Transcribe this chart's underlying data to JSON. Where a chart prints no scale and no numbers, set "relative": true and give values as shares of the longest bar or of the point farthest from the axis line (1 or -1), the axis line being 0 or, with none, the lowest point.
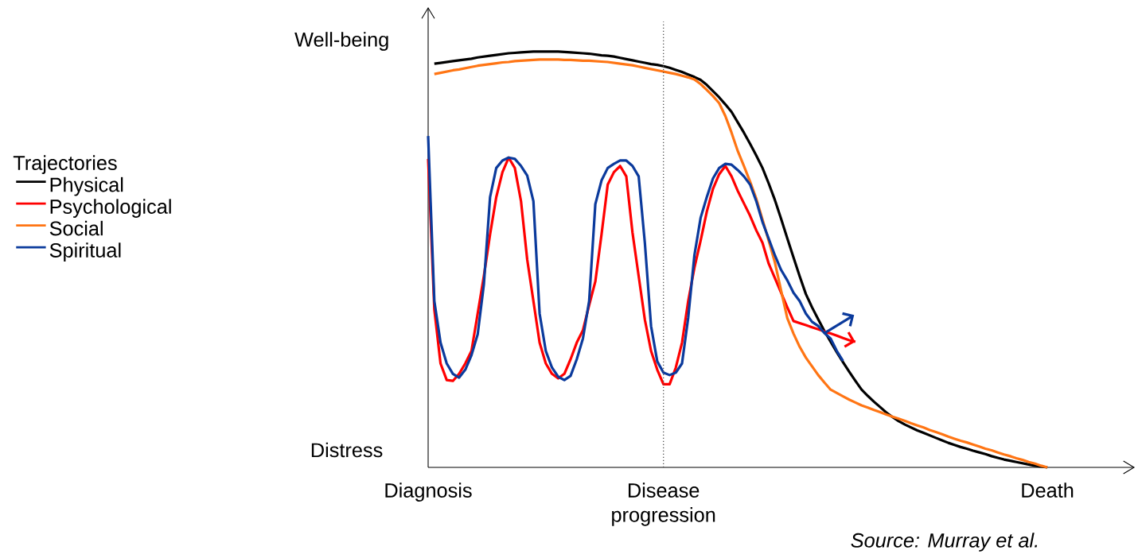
{
  "chart_data": {
    "type": "line",
    "relative": true,
    "legend_title": "Trajectories",
    "legend": "left",
    "annotations": [
      "Well-being",
      "Distress",
      "Source: Murray et al."
    ],
    "categories": [
      "Diagnosis",
      null,
      null,
      null,
      null,
      null,
      null,
      null,
      null,
      null,
      null,
      null,
      null,
      null,
      null,
      null,
      null,
      null,
      null,
      null,
      null,
      null,
      null,
      null,
      null,
      null,
      null,
      null,
      null,
      null,
      null,
      null,
      null,
      null,
      null,
      null,
      null,
      null,
      "Disease progression",
      null,
      null,
      null,
      null,
      null,
      null,
      null,
      null,
      null,
      null,
      null,
      null,
      null,
      null,
      null,
      null,
      null,
      null,
      null,
      null,
      null,
      null,
      null,
      null,
      null,
      null,
      null,
      null,
      null,
      null,
      null,
      null,
      null,
      null,
      null,
      null,
      null,
      null,
      null,
      null,
      null,
      null,
      null,
      null,
      null,
      null,
      null,
      null,
      null,
      null,
      null,
      null,
      null,
      null,
      null,
      null,
      null,
      null,
      null,
      null,
      null,
      "Death"
    ],
    "ref_lines": [
      {
        "axis": "x",
        "value": "Disease progression",
        "label": null,
        "color": "#555555",
        "line_style": "dotted"
      }
    ],
    "series": [
      {
        "name": "Physical",
        "color": "#000000",
        "values": [
          null,
          0.971,
          0.973,
          0.975,
          0.977,
          0.979,
          0.981,
          0.983,
          0.986,
          0.988,
          0.99,
          0.992,
          0.994,
          0.996,
          0.997,
          0.998,
          0.999,
          1.0,
          1.0,
          1.0,
          1.0,
          1.0,
          0.999,
          0.998,
          0.997,
          0.996,
          0.995,
          0.993,
          0.991,
          0.99,
          0.988,
          0.985,
          0.982,
          0.979,
          0.976,
          0.973,
          0.97,
          0.968,
          0.965,
          0.961,
          0.956,
          0.951,
          0.945,
          0.939,
          0.932,
          0.92,
          0.905,
          0.89,
          0.873,
          0.855,
          0.83,
          0.805,
          0.778,
          0.75,
          0.72,
          0.683,
          0.643,
          0.598,
          0.551,
          0.505,
          0.46,
          0.417,
          0.385,
          0.356,
          0.328,
          0.302,
          0.277,
          0.253,
          0.23,
          0.208,
          0.187,
          0.172,
          0.158,
          0.145,
          0.132,
          0.121,
          0.111,
          0.103,
          0.096,
          0.089,
          0.083,
          0.077,
          0.071,
          0.065,
          0.059,
          0.054,
          0.049,
          0.045,
          0.04,
          0.036,
          0.032,
          0.027,
          0.023,
          0.019,
          0.016,
          0.013,
          0.01,
          0.007,
          0.004,
          0.002,
          0.0
        ]
      },
      {
        "name": "Psychological",
        "color": "#ff0000",
        "values": [
          0.742,
          0.38,
          0.25,
          0.21,
          0.208,
          0.225,
          0.25,
          0.28,
          0.37,
          0.46,
          0.56,
          0.65,
          0.71,
          0.745,
          0.72,
          0.64,
          0.5,
          0.4,
          0.3,
          0.25,
          0.225,
          0.214,
          0.225,
          0.26,
          0.3,
          0.33,
          0.39,
          0.447,
          0.56,
          0.68,
          0.71,
          0.725,
          0.7,
          0.565,
          0.46,
          0.355,
          0.28,
          0.235,
          0.2,
          0.2,
          0.24,
          0.3,
          0.4,
          0.48,
          0.545,
          0.615,
          0.67,
          0.705,
          0.725,
          0.7,
          0.665,
          0.635,
          0.605,
          0.57,
          0.54,
          0.49,
          0.455,
          0.42,
          0.385,
          0.352,
          0.347,
          0.342,
          0.337,
          0.332,
          0.327,
          0.322,
          0.317,
          0.311,
          0.306,
          0.302,
          null,
          null,
          null,
          null,
          null,
          null,
          null,
          null,
          null,
          null,
          null,
          null,
          null,
          null,
          null,
          null,
          null,
          null,
          null,
          null,
          null,
          null,
          null,
          null,
          null,
          null,
          null,
          null,
          null,
          null,
          null
        ]
      },
      {
        "name": "Social",
        "color": "#ff7514",
        "values": [
          null,
          0.946,
          0.949,
          0.952,
          0.955,
          0.957,
          0.96,
          0.963,
          0.966,
          0.968,
          0.97,
          0.972,
          0.974,
          0.975,
          0.977,
          0.978,
          0.979,
          0.98,
          0.981,
          0.981,
          0.981,
          0.981,
          0.98,
          0.98,
          0.979,
          0.978,
          0.978,
          0.977,
          0.976,
          0.975,
          0.973,
          0.971,
          0.969,
          0.967,
          0.964,
          0.961,
          0.958,
          0.955,
          0.952,
          0.949,
          0.946,
          0.942,
          0.938,
          0.933,
          0.922,
          0.908,
          0.893,
          0.876,
          0.845,
          0.805,
          0.761,
          0.725,
          0.687,
          0.646,
          0.596,
          0.545,
          0.493,
          0.425,
          0.359,
          0.322,
          0.29,
          0.264,
          0.243,
          0.222,
          0.204,
          0.187,
          0.179,
          0.171,
          0.163,
          0.156,
          0.149,
          0.144,
          0.138,
          0.133,
          0.127,
          0.122,
          0.117,
          0.112,
          0.106,
          0.101,
          0.096,
          0.09,
          0.085,
          0.08,
          0.074,
          0.069,
          0.064,
          0.06,
          0.055,
          0.05,
          0.045,
          0.041,
          0.036,
          0.031,
          0.027,
          0.022,
          0.018,
          0.013,
          0.009,
          0.004,
          0.0
        ]
      },
      {
        "name": "Spiritual",
        "color": "#0b3a9c",
        "values": [
          0.797,
          0.4,
          0.3,
          0.25,
          0.225,
          0.216,
          0.235,
          0.27,
          0.32,
          0.44,
          0.65,
          0.72,
          0.738,
          0.745,
          0.742,
          0.725,
          0.702,
          0.64,
          0.37,
          0.28,
          0.24,
          0.218,
          0.21,
          0.22,
          0.26,
          0.31,
          0.4,
          0.633,
          0.69,
          0.72,
          0.73,
          0.738,
          0.738,
          0.725,
          0.7,
          0.54,
          0.34,
          0.255,
          0.228,
          0.222,
          0.228,
          0.25,
          0.36,
          0.51,
          0.6,
          0.65,
          0.695,
          0.72,
          0.73,
          0.728,
          0.715,
          0.7,
          0.68,
          0.64,
          0.59,
          0.55,
          0.51,
          0.475,
          0.45,
          0.42,
          0.4,
          0.37,
          0.35,
          0.34,
          0.323,
          0.31,
          0.28,
          0.256,
          null,
          null,
          null,
          null,
          null,
          null,
          null,
          null,
          null,
          null,
          null,
          null,
          null,
          null,
          null,
          null,
          null,
          null,
          null,
          null,
          null,
          null,
          null,
          null,
          null,
          null,
          null,
          null,
          null,
          null,
          null,
          null,
          null
        ]
      }
    ]
  }
}
